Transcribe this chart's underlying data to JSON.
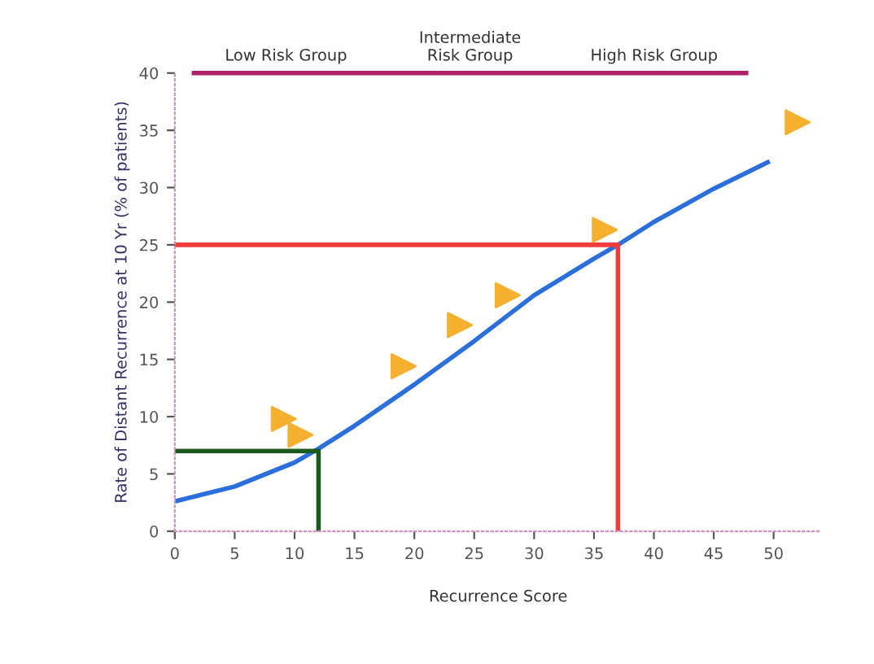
{
  "chart_data": {
    "type": "line",
    "xlabel": "Recurrence Score",
    "ylabel": "Rate of Distant Recurrence at 10 Yr (% of patients)",
    "annotations": [
      "Low Risk Group",
      "Intermediate\nRisk Group",
      "High Risk Group"
    ],
    "series": [
      {
        "color": "#2a6fdb",
        "x": [
          0,
          5,
          10,
          12,
          15,
          20,
          25,
          30,
          35,
          37,
          40,
          45,
          49.5
        ],
        "values": [
          2.6,
          3.9,
          6.0,
          7.2,
          9.2,
          12.8,
          16.6,
          20.6,
          23.8,
          25.0,
          27.0,
          29.9,
          32.2
        ]
      },
      {
        "type": "line",
        "color": "#1e5a1e",
        "x": [
          0,
          12,
          12
        ],
        "values": [
          7,
          7,
          0
        ]
      },
      {
        "type": "line",
        "color": "#f03c3c",
        "x": [
          0,
          37,
          37
        ],
        "values": [
          25,
          25,
          0
        ]
      },
      {
        "type": "scatter",
        "color": "#f5b030",
        "marker": "triangle",
        "x": [
          9.1,
          10.5,
          19.1,
          23.8,
          27.8,
          35.9,
          52.0
        ],
        "values": [
          9.8,
          8.4,
          14.4,
          18.0,
          20.6,
          26.3,
          35.7
        ]
      }
    ],
    "ref_lines": [
      {
        "axis": "y",
        "value": 40,
        "color": "#b0206a"
      }
    ],
    "xlim": [
      0,
      54
    ],
    "xticks": [
      0,
      5,
      10,
      15,
      20,
      25,
      30,
      35,
      40,
      45,
      50
    ],
    "ylim": [
      0,
      40
    ],
    "yticks": [
      0,
      5,
      10,
      15,
      20,
      25,
      30,
      35,
      40
    ],
    "grid": false
  }
}
